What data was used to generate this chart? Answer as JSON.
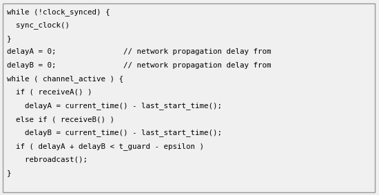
{
  "lines": [
    "while (!clock_synced) {",
    "  sync_clock()",
    "}",
    "delayA = 0;               // network propagation delay from",
    "delayB = 0;               // network propagation delay from",
    "while ( channel_active ) {",
    "  if ( receiveA() )",
    "    delayA = current_time() - last_start_time();",
    "  else if ( receiveB() )",
    "    delayB = current_time() - last_start_time();",
    "  if ( delayA + delayB < t_guard - epsilon )",
    "    rebroadcast();",
    "}"
  ],
  "font_family": "monospace",
  "font_size": 7.8,
  "bg_color": "#f0f0f0",
  "text_color": "#000000",
  "border_color": "#999999",
  "fig_width": 5.5,
  "fig_height": 2.83
}
